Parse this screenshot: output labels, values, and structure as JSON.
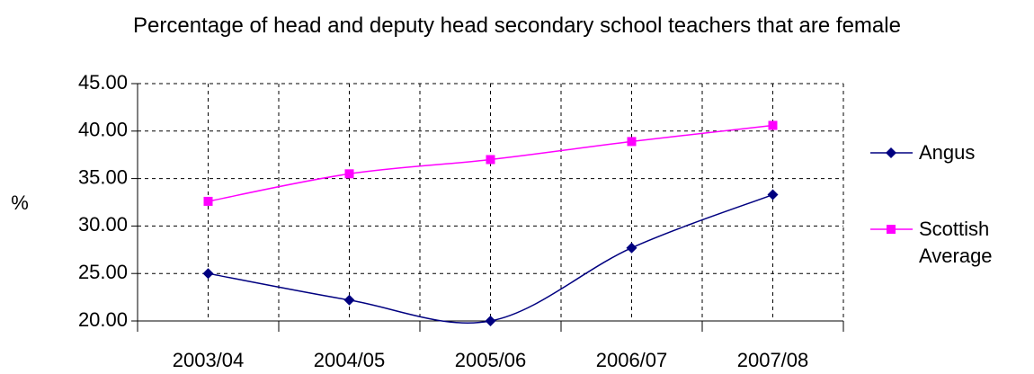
{
  "chart_data": {
    "type": "line",
    "title": "Percentage of head and deputy head secondary school teachers that are female",
    "y_label": "%",
    "categories": [
      "2003/04",
      "2004/05",
      "2005/06",
      "2006/07",
      "2007/08"
    ],
    "series": [
      {
        "name": "Angus",
        "color": "#000080",
        "marker": "diamond",
        "values": [
          25.0,
          22.2,
          20.0,
          27.7,
          33.3
        ]
      },
      {
        "name": "Scottish Average",
        "color": "#ff00ff",
        "marker": "square",
        "values": [
          32.6,
          35.5,
          37.0,
          38.9,
          40.6
        ]
      }
    ],
    "ylim": [
      20,
      45
    ],
    "yticks": [
      {
        "value": 20,
        "label": "20.00"
      },
      {
        "value": 25,
        "label": "25.00"
      },
      {
        "value": 30,
        "label": "30.00"
      },
      {
        "value": 35,
        "label": "35.00"
      },
      {
        "value": 40,
        "label": "40.00"
      },
      {
        "value": 45,
        "label": "45.00"
      }
    ],
    "grid": true,
    "smooth": true,
    "legend": "right"
  }
}
